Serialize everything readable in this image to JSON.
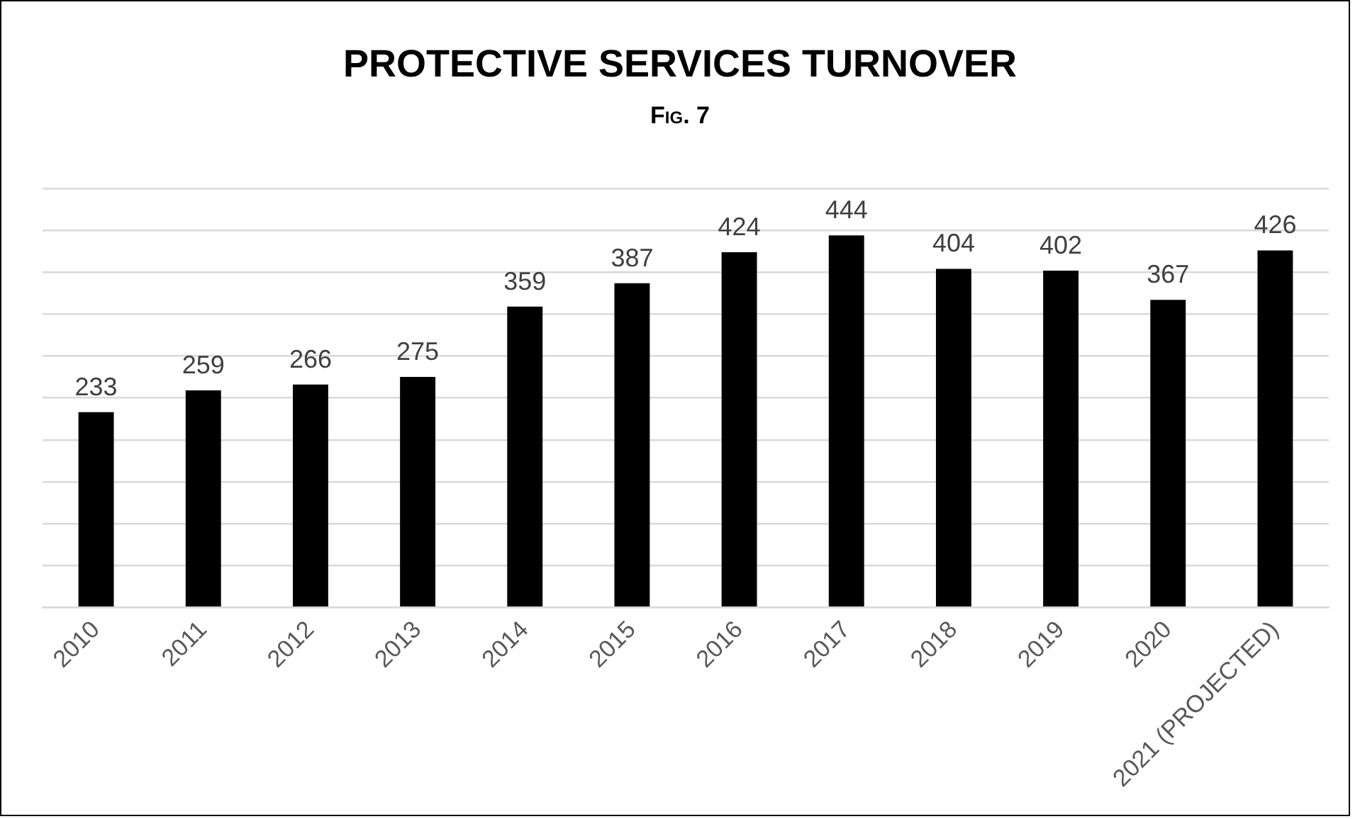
{
  "chart_data": {
    "type": "bar",
    "title": "PROTECTIVE SERVICES TURNOVER",
    "subtitle": "Fig. 7",
    "categories": [
      "2010",
      "2011",
      "2012",
      "2013",
      "2014",
      "2015",
      "2016",
      "2017",
      "2018",
      "2019",
      "2020",
      "2021 (PROJECTED)"
    ],
    "values": [
      233,
      259,
      266,
      275,
      359,
      387,
      424,
      444,
      404,
      402,
      367,
      426
    ],
    "color": "#000000",
    "ylim": [
      0,
      500
    ],
    "yticks": [
      0,
      50,
      100,
      150,
      200,
      250,
      300,
      350,
      400,
      450,
      500
    ],
    "grid": "y",
    "tick_labels": "x",
    "data_labels": true,
    "legend": false
  }
}
